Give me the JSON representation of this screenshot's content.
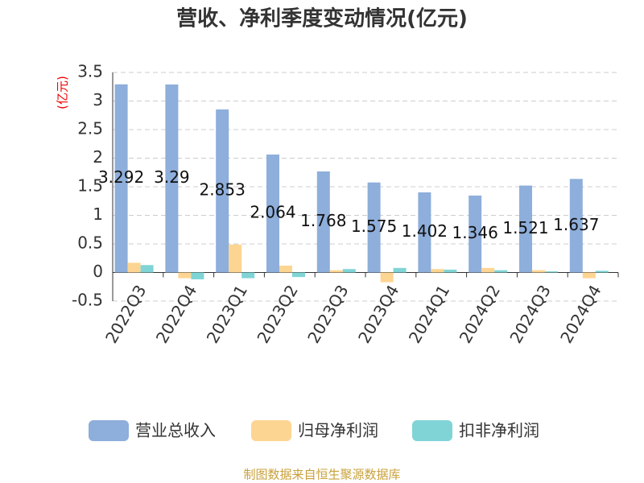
{
  "chart_data": {
    "type": "bar",
    "title": "营收、净利季度变动情况(亿元)",
    "y_label": "(亿元)",
    "categories": [
      "2022Q3",
      "2022Q4",
      "2023Q1",
      "2023Q2",
      "2023Q3",
      "2023Q4",
      "2024Q1",
      "2024Q2",
      "2024Q3",
      "2024Q4"
    ],
    "series": [
      {
        "name": "营业总收入",
        "color": "#8eaedb",
        "values": [
          3.292,
          3.29,
          2.853,
          2.064,
          1.768,
          1.575,
          1.402,
          1.346,
          1.521,
          1.637
        ]
      },
      {
        "name": "归母净利润",
        "color": "#fdd592",
        "values": [
          0.17,
          -0.1,
          0.49,
          0.12,
          0.04,
          -0.17,
          0.06,
          0.08,
          0.04,
          -0.1
        ]
      },
      {
        "name": "扣非净利润",
        "color": "#80d4d6",
        "values": [
          0.13,
          -0.12,
          -0.1,
          -0.08,
          0.06,
          0.08,
          0.05,
          0.04,
          0.02,
          0.03
        ]
      }
    ],
    "labeled_series": 0,
    "ylim": [
      -0.5,
      3.5
    ],
    "yticks": [
      -0.5,
      0,
      0.5,
      1,
      1.5,
      2,
      2.5,
      3,
      3.5
    ],
    "grid": true,
    "source": "制图数据来自恒生聚源数据库"
  }
}
